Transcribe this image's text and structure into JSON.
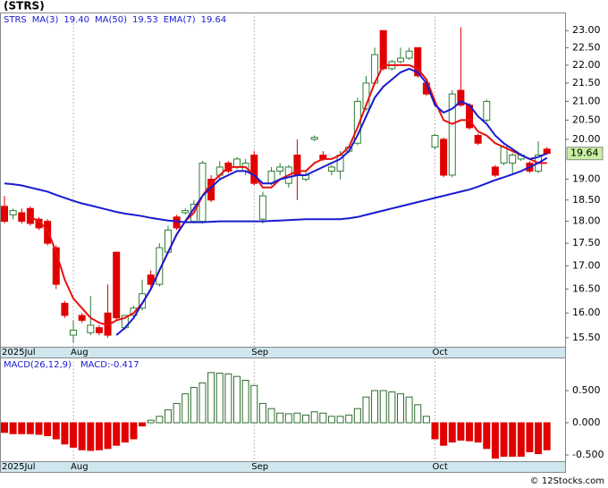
{
  "chart_data": [
    {
      "type": "candlestick",
      "title": "(STRS)",
      "symbol": "STRS",
      "categories": [
        "2025Jul",
        null,
        null,
        null,
        null,
        null,
        null,
        null,
        "Aug",
        null,
        null,
        null,
        null,
        null,
        null,
        null,
        null,
        null,
        null,
        null,
        null,
        null,
        null,
        null,
        null,
        null,
        null,
        null,
        null,
        "Sep",
        null,
        null,
        null,
        null,
        null,
        null,
        null,
        null,
        null,
        null,
        null,
        null,
        null,
        null,
        null,
        null,
        null,
        null,
        null,
        null,
        "Oct",
        null,
        null,
        null,
        null,
        null,
        null,
        null,
        null,
        null,
        null,
        null,
        null,
        null
      ],
      "open": [
        18.35,
        18.15,
        18.2,
        18.3,
        18.05,
        18.0,
        17.4,
        16.2,
        15.55,
        15.95,
        15.6,
        15.7,
        16.0,
        17.3,
        15.7,
        15.95,
        16.1,
        16.8,
        16.6,
        17.3,
        18.1,
        18.2,
        18.0,
        18.0,
        19.0,
        19.1,
        19.4,
        19.3,
        19.2,
        19.6,
        18.05,
        18.9,
        19.2,
        18.9,
        19.6,
        19.0,
        20.0,
        19.6,
        19.2,
        19.2,
        19.7,
        19.9,
        20.8,
        21.5,
        23.0,
        21.9,
        22.1,
        22.2,
        22.5,
        21.5,
        19.8,
        20.0,
        19.1,
        21.3,
        20.9,
        20.1,
        20.5,
        19.3,
        19.4,
        19.4,
        19.5,
        19.4,
        19.2,
        19.75
      ],
      "high": [
        18.6,
        18.3,
        18.3,
        18.35,
        18.1,
        18.05,
        17.45,
        16.25,
        15.85,
        16.0,
        16.35,
        15.75,
        16.6,
        17.3,
        15.95,
        16.15,
        16.7,
        16.9,
        17.5,
        17.9,
        18.15,
        18.3,
        18.5,
        19.45,
        19.1,
        19.45,
        19.45,
        19.55,
        19.5,
        19.7,
        18.7,
        19.3,
        19.4,
        19.35,
        20.0,
        19.2,
        20.1,
        19.7,
        19.35,
        19.7,
        19.85,
        21.1,
        21.7,
        22.5,
        23.0,
        22.15,
        22.5,
        22.5,
        22.5,
        21.55,
        20.15,
        20.05,
        21.3,
        23.1,
        20.95,
        20.15,
        21.05,
        19.35,
        19.85,
        19.65,
        19.65,
        19.45,
        19.95,
        19.8
      ],
      "low": [
        17.95,
        18.05,
        17.95,
        17.9,
        17.8,
        17.45,
        16.5,
        15.9,
        15.4,
        15.8,
        15.55,
        15.55,
        15.5,
        15.85,
        15.65,
        15.9,
        16.05,
        16.5,
        16.55,
        17.25,
        17.8,
        18.15,
        17.95,
        17.95,
        18.45,
        19.0,
        19.15,
        19.25,
        19.1,
        18.85,
        17.95,
        18.85,
        19.1,
        18.8,
        18.5,
        18.95,
        19.95,
        19.45,
        19.1,
        19.0,
        19.65,
        19.85,
        20.75,
        21.45,
        21.85,
        21.85,
        22.05,
        22.15,
        21.65,
        21.15,
        19.75,
        19.05,
        19.05,
        20.85,
        20.25,
        19.85,
        20.45,
        19.05,
        19.35,
        19.1,
        19.45,
        19.15,
        19.15,
        19.6
      ],
      "close": [
        18.0,
        18.25,
        18.0,
        17.95,
        17.85,
        17.5,
        16.6,
        15.95,
        15.65,
        15.85,
        15.75,
        15.6,
        15.55,
        15.9,
        15.95,
        16.1,
        16.4,
        16.6,
        17.4,
        17.8,
        17.85,
        18.25,
        18.4,
        19.4,
        18.5,
        19.3,
        19.2,
        19.5,
        19.4,
        18.9,
        18.6,
        19.2,
        19.3,
        19.3,
        19.1,
        19.1,
        20.05,
        19.5,
        19.3,
        19.6,
        19.8,
        21.0,
        21.5,
        22.3,
        21.9,
        22.1,
        22.2,
        22.4,
        21.7,
        21.2,
        20.1,
        19.1,
        21.2,
        20.9,
        20.3,
        19.9,
        21.0,
        19.1,
        19.8,
        19.6,
        19.6,
        19.2,
        19.6,
        19.64
      ],
      "up_color": "#2e7d32",
      "down_color": "#e00000",
      "series": [
        {
          "name": "MA(3)",
          "last_label": "19.40",
          "color": "#e81010",
          "values": [
            null,
            null,
            null,
            18.1,
            18.0,
            17.8,
            17.3,
            16.7,
            16.3,
            16.1,
            15.9,
            15.8,
            15.75,
            15.85,
            15.9,
            16.0,
            16.2,
            16.5,
            16.9,
            17.3,
            17.7,
            18.0,
            18.2,
            18.6,
            18.9,
            19.1,
            19.3,
            19.3,
            19.3,
            19.1,
            18.8,
            18.8,
            19.0,
            19.1,
            19.2,
            19.2,
            19.4,
            19.5,
            19.5,
            19.6,
            19.8,
            20.3,
            20.9,
            21.5,
            22.0,
            22.0,
            22.0,
            22.0,
            21.9,
            21.6,
            21.0,
            20.5,
            20.4,
            20.5,
            20.5,
            20.2,
            20.1,
            19.9,
            19.8,
            19.7,
            19.6,
            19.5,
            19.4,
            19.4
          ]
        },
        {
          "name": "MA(50)",
          "last_label": "19.53",
          "color": "#1a1ad0",
          "values": [
            18.9,
            18.88,
            18.85,
            18.8,
            18.75,
            18.7,
            18.62,
            18.55,
            18.48,
            18.42,
            18.37,
            18.32,
            18.27,
            18.22,
            18.18,
            18.15,
            18.12,
            18.08,
            18.05,
            18.02,
            18.0,
            17.98,
            17.98,
            17.98,
            17.99,
            18.0,
            18.0,
            18.0,
            18.0,
            18.0,
            18.0,
            18.01,
            18.02,
            18.03,
            18.04,
            18.05,
            18.05,
            18.05,
            18.05,
            18.05,
            18.07,
            18.1,
            18.15,
            18.2,
            18.25,
            18.3,
            18.35,
            18.4,
            18.45,
            18.5,
            18.55,
            18.6,
            18.65,
            18.7,
            18.75,
            18.82,
            18.9,
            18.98,
            19.05,
            19.12,
            19.2,
            19.3,
            19.4,
            19.53
          ]
        },
        {
          "name": "EMA(7)",
          "last_label": "19.64",
          "color": "#1a1ad0",
          "values": [
            null,
            null,
            null,
            null,
            null,
            null,
            null,
            null,
            null,
            null,
            null,
            null,
            null,
            15.55,
            15.7,
            15.9,
            16.2,
            16.5,
            16.9,
            17.3,
            17.7,
            18.0,
            18.3,
            18.6,
            18.8,
            19.0,
            19.1,
            19.2,
            19.2,
            19.1,
            18.9,
            18.9,
            19.0,
            19.05,
            19.1,
            19.1,
            19.2,
            19.3,
            19.4,
            19.5,
            19.7,
            20.1,
            20.6,
            21.1,
            21.4,
            21.6,
            21.8,
            21.9,
            21.8,
            21.5,
            20.9,
            20.7,
            20.8,
            21.0,
            20.9,
            20.6,
            20.4,
            20.1,
            19.9,
            19.75,
            19.6,
            19.5,
            19.55,
            19.64
          ]
        }
      ],
      "last_price": 19.64,
      "last_price_color": "#c8f0a0",
      "log_scale": true,
      "ylim": [
        15.32,
        23.54
      ],
      "yticks": [
        {
          "value": 15.5,
          "label": "15.50"
        },
        {
          "value": 16,
          "label": "16.00"
        },
        {
          "value": 16.5,
          "label": "16.50"
        },
        {
          "value": 17,
          "label": "17.00"
        },
        {
          "value": 17.5,
          "label": "17.50"
        },
        {
          "value": 18,
          "label": "18.00"
        },
        {
          "value": 18.5,
          "label": "18.50"
        },
        {
          "value": 19,
          "label": "19.00"
        },
        {
          "value": 20,
          "label": "20.00"
        },
        {
          "value": 20.5,
          "label": "20.50"
        },
        {
          "value": 21,
          "label": "21.00"
        },
        {
          "value": 21.5,
          "label": "21.50"
        },
        {
          "value": 22,
          "label": "22.00"
        },
        {
          "value": 22.5,
          "label": "22.50"
        },
        {
          "value": 23,
          "label": "23.00"
        }
      ]
    },
    {
      "type": "bar",
      "title": "MACD(26,12,9)",
      "value_text": "MACD:-0.417",
      "categories": [
        "2025Jul",
        null,
        null,
        null,
        null,
        null,
        null,
        null,
        "Aug",
        null,
        null,
        null,
        null,
        null,
        null,
        null,
        null,
        null,
        null,
        null,
        null,
        null,
        null,
        null,
        null,
        null,
        null,
        null,
        null,
        "Sep",
        null,
        null,
        null,
        null,
        null,
        null,
        null,
        null,
        null,
        null,
        null,
        null,
        null,
        null,
        null,
        null,
        null,
        null,
        null,
        null,
        "Oct",
        null,
        null,
        null,
        null,
        null,
        null,
        null,
        null,
        null,
        null,
        null,
        null,
        null
      ],
      "values": [
        -0.15,
        -0.17,
        -0.17,
        -0.17,
        -0.18,
        -0.2,
        -0.25,
        -0.33,
        -0.38,
        -0.42,
        -0.43,
        -0.42,
        -0.4,
        -0.35,
        -0.3,
        -0.25,
        -0.05,
        0.04,
        0.1,
        0.2,
        0.3,
        0.45,
        0.55,
        0.62,
        0.78,
        0.77,
        0.76,
        0.72,
        0.66,
        0.58,
        0.3,
        0.22,
        0.15,
        0.14,
        0.15,
        0.12,
        0.17,
        0.15,
        0.1,
        0.1,
        0.12,
        0.22,
        0.4,
        0.5,
        0.5,
        0.48,
        0.45,
        0.4,
        0.28,
        0.1,
        -0.25,
        -0.35,
        -0.3,
        -0.27,
        -0.28,
        -0.3,
        -0.4,
        -0.55,
        -0.52,
        -0.52,
        -0.52,
        -0.45,
        -0.48,
        -0.42
      ],
      "pos_color": "#2e6b2e",
      "neg_color": "#e00000",
      "ylim": [
        -0.597,
        1.014
      ],
      "yticks": [
        {
          "value": 0.5,
          "label": "0.500"
        },
        {
          "value": 0,
          "label": "0.000"
        },
        {
          "value": -0.5,
          "label": "-0.500"
        }
      ]
    }
  ],
  "source": "© 12Stocks.com"
}
